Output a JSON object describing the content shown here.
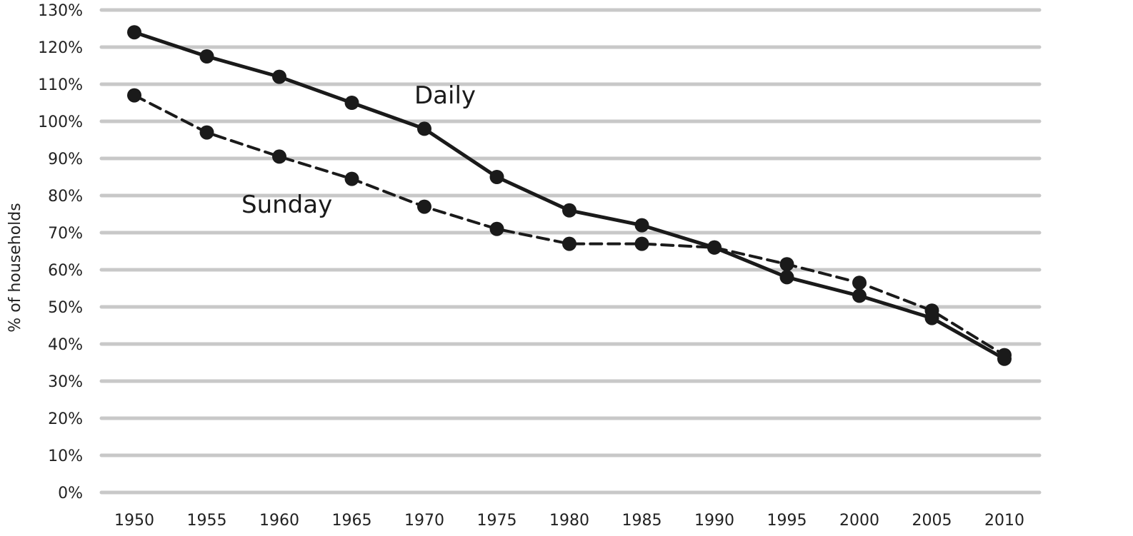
{
  "chart_data": {
    "type": "line",
    "ylabel": "% of households",
    "xlabel": "",
    "ylim": [
      0,
      130
    ],
    "yticks": [
      "0%",
      "10%",
      "20%",
      "30%",
      "40%",
      "50%",
      "60%",
      "70%",
      "80%",
      "90%",
      "100%",
      "110%",
      "120%",
      "130%"
    ],
    "x": [
      1950,
      1955,
      1960,
      1965,
      1970,
      1975,
      1980,
      1985,
      1990,
      1995,
      2000,
      2005,
      2010
    ],
    "grid": true,
    "series": [
      {
        "name": "Daily",
        "style": "solid",
        "color": "#1a1a1a",
        "values": [
          124,
          117.5,
          112,
          105,
          98,
          85,
          76,
          72,
          66,
          58,
          53,
          47,
          36
        ]
      },
      {
        "name": "Sunday",
        "style": "dashed",
        "color": "#1a1a1a",
        "values": [
          107,
          97,
          90.5,
          84.5,
          77,
          71,
          67,
          67,
          66,
          61.5,
          56.5,
          49,
          37
        ]
      }
    ]
  },
  "colors": {
    "grid": "#c8c8c8",
    "line": "#1a1a1a"
  }
}
